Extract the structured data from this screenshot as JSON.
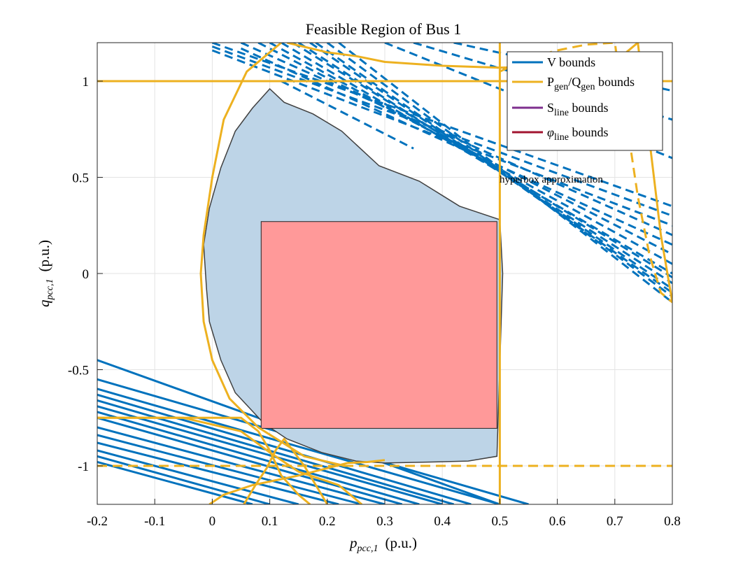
{
  "chart_data": {
    "type": "line",
    "title": "Feasible Region of Bus 1",
    "xlabel": {
      "main": "p",
      "sub": "pcc,1",
      "unit": "(p.u.)"
    },
    "ylabel": {
      "main": "q",
      "sub": "pcc,1",
      "unit": "(p.u.)"
    },
    "xlim": [
      -0.2,
      0.8
    ],
    "ylim": [
      -1.2,
      1.2
    ],
    "xticks": [
      "-0.2",
      "-0.1",
      "0",
      "0.1",
      "0.2",
      "0.3",
      "0.4",
      "0.5",
      "0.6",
      "0.7",
      "0.8"
    ],
    "yticks": [
      "-1",
      "-0.5",
      "0",
      "0.5",
      "1"
    ],
    "grid": true,
    "legend_position": "top-right",
    "legend": [
      {
        "label": "V bounds",
        "color": "#0072BD"
      },
      {
        "label_parts": [
          "P",
          "gen",
          "/Q",
          "gen",
          " bounds"
        ],
        "color": "#EDB120"
      },
      {
        "label_parts": [
          "S",
          "line",
          " bounds"
        ],
        "color": "#7E2F8E"
      },
      {
        "label_parts": [
          "φ",
          "line",
          " bounds"
        ],
        "color": "#A2142F"
      }
    ],
    "annotation": {
      "text": "hyperbox approximation",
      "x": 0.5,
      "y": 0.5
    },
    "colors": {
      "v_bounds": "#0072BD",
      "gen_bounds": "#EDB120",
      "feasible_fill": "#bdd4e7",
      "hyperbox_fill": "#ff9999",
      "boundary": "#404040",
      "grid": "#e3e3e3"
    },
    "feasible_region": {
      "x": [
        0.1,
        0.125,
        0.175,
        0.225,
        0.29,
        0.36,
        0.43,
        0.5,
        0.505,
        0.495,
        0.445,
        0.38,
        0.3,
        0.25,
        0.19,
        0.13,
        0.09,
        0.04,
        0.015,
        -0.005,
        -0.01,
        -0.015,
        -0.005,
        0.015,
        0.04,
        0.07
      ],
      "y": [
        0.96,
        0.89,
        0.83,
        0.74,
        0.56,
        0.48,
        0.35,
        0.28,
        0.0,
        -0.95,
        -0.975,
        -0.98,
        -0.985,
        -0.975,
        -0.93,
        -0.86,
        -0.78,
        -0.62,
        -0.45,
        -0.25,
        -0.08,
        0.15,
        0.34,
        0.55,
        0.74,
        0.86
      ]
    },
    "hyperbox": {
      "x": [
        0.085,
        0.495
      ],
      "y": [
        -0.805,
        0.27
      ]
    },
    "gen_bounds": {
      "vertical_line_x": 0.5,
      "horizontal_line_y": 1.0,
      "horizontal_dashed_y": -1.0,
      "arc": {
        "x": [
          0.12,
          0.06,
          0.02,
          0.0,
          -0.015,
          -0.02,
          -0.015,
          0.0,
          0.03,
          0.08,
          0.16,
          0.23
        ],
        "y": [
          1.2,
          1.05,
          0.8,
          0.5,
          0.2,
          0.0,
          -0.25,
          -0.45,
          -0.65,
          -0.8,
          -0.95,
          -1.0
        ]
      },
      "lower_curve": {
        "x": [
          -0.2,
          0.05,
          0.08,
          0.1,
          0.12,
          0.15,
          0.17
        ],
        "y": [
          -0.75,
          -0.75,
          -0.82,
          -0.92,
          -1.05,
          -1.15,
          -1.2
        ]
      },
      "lower_curve2": {
        "x": [
          -0.2,
          -0.05,
          0.05,
          0.1,
          0.15,
          0.22,
          0.26
        ],
        "y": [
          -0.75,
          -0.75,
          -0.82,
          -0.93,
          -1.03,
          -1.1,
          -1.2
        ]
      },
      "lower_curve3": {
        "x": [
          -0.005,
          0.02,
          0.07,
          0.15,
          0.235,
          0.27,
          0.3
        ],
        "y": [
          -1.2,
          -1.15,
          -1.1,
          -1.05,
          -0.985,
          -0.98,
          -0.97
        ]
      },
      "upper_curve": {
        "x": [
          0.055,
          0.075,
          0.095,
          0.11,
          0.125,
          0.14,
          0.16,
          0.18,
          0.2
        ],
        "y": [
          -1.2,
          -1.1,
          -1.01,
          -0.92,
          -0.86,
          -0.92,
          -1.0,
          -1.1,
          -1.2
        ]
      },
      "upper_arc": {
        "x": [
          0.13,
          0.2,
          0.25,
          0.3,
          0.4,
          0.5,
          0.6,
          0.7,
          0.72,
          0.74,
          0.76,
          0.78,
          0.8
        ],
        "y": [
          1.2,
          1.15,
          1.13,
          1.1,
          1.08,
          1.07,
          1.08,
          1.11,
          1.15,
          1.2,
          0.7,
          0.2,
          -0.15
        ]
      },
      "dashed_arc": {
        "x": [
          0.5,
          0.55,
          0.6,
          0.65,
          0.7,
          0.72,
          0.74,
          0.76,
          0.78,
          0.8
        ],
        "y": [
          1.05,
          1.12,
          1.16,
          1.19,
          1.2,
          0.8,
          0.4,
          0.1,
          -0.1,
          -0.15
        ]
      }
    },
    "v_bounds_lower_lines": [
      {
        "x": [
          -0.2,
          0.5
        ],
        "y": [
          -0.45,
          -1.2
        ]
      },
      {
        "x": [
          -0.2,
          0.55
        ],
        "y": [
          -0.55,
          -1.2
        ]
      },
      {
        "x": [
          -0.2,
          0.5
        ],
        "y": [
          -0.6,
          -1.2
        ]
      },
      {
        "x": [
          -0.2,
          0.45
        ],
        "y": [
          -0.63,
          -1.2
        ]
      },
      {
        "x": [
          -0.2,
          0.42
        ],
        "y": [
          -0.66,
          -1.2
        ]
      },
      {
        "x": [
          -0.2,
          0.4
        ],
        "y": [
          -0.69,
          -1.2
        ]
      },
      {
        "x": [
          -0.2,
          0.36
        ],
        "y": [
          -0.72,
          -1.2
        ]
      },
      {
        "x": [
          -0.2,
          0.33
        ],
        "y": [
          -0.75,
          -1.2
        ]
      },
      {
        "x": [
          -0.2,
          0.3
        ],
        "y": [
          -0.8,
          -1.2
        ]
      },
      {
        "x": [
          -0.2,
          0.26
        ],
        "y": [
          -0.84,
          -1.2
        ]
      },
      {
        "x": [
          -0.2,
          0.22
        ],
        "y": [
          -0.88,
          -1.2
        ]
      },
      {
        "x": [
          -0.2,
          0.15
        ],
        "y": [
          -0.92,
          -1.2
        ]
      },
      {
        "x": [
          -0.2,
          0.1
        ],
        "y": [
          -0.95,
          -1.2
        ]
      },
      {
        "x": [
          -0.2,
          0.07
        ],
        "y": [
          -0.98,
          -1.2
        ]
      }
    ],
    "v_bounds_upper_dashed": [
      {
        "x": [
          0.0,
          0.8
        ],
        "y": [
          1.2,
          0.35
        ]
      },
      {
        "x": [
          0.0,
          0.8
        ],
        "y": [
          1.18,
          0.3
        ]
      },
      {
        "x": [
          0.0,
          0.8
        ],
        "y": [
          1.16,
          0.25
        ]
      },
      {
        "x": [
          0.05,
          0.8
        ],
        "y": [
          1.2,
          0.2
        ]
      },
      {
        "x": [
          0.05,
          0.8
        ],
        "y": [
          1.17,
          0.15
        ]
      },
      {
        "x": [
          0.08,
          0.8
        ],
        "y": [
          1.2,
          0.1
        ]
      },
      {
        "x": [
          0.1,
          0.8
        ],
        "y": [
          1.2,
          0.05
        ]
      },
      {
        "x": [
          0.12,
          0.8
        ],
        "y": [
          1.2,
          0.0
        ]
      },
      {
        "x": [
          0.14,
          0.8
        ],
        "y": [
          1.2,
          -0.02
        ]
      },
      {
        "x": [
          0.15,
          0.8
        ],
        "y": [
          1.2,
          -0.05
        ]
      },
      {
        "x": [
          0.17,
          0.8
        ],
        "y": [
          1.2,
          -0.08
        ]
      },
      {
        "x": [
          0.18,
          0.8
        ],
        "y": [
          1.2,
          -0.1
        ]
      },
      {
        "x": [
          0.2,
          0.8
        ],
        "y": [
          1.2,
          -0.12
        ]
      },
      {
        "x": [
          0.22,
          0.8
        ],
        "y": [
          1.2,
          -0.15
        ]
      },
      {
        "x": [
          0.3,
          0.8
        ],
        "y": [
          1.2,
          0.6
        ]
      },
      {
        "x": [
          0.35,
          0.8
        ],
        "y": [
          1.2,
          0.8
        ]
      },
      {
        "x": [
          0.42,
          0.8
        ],
        "y": [
          1.2,
          0.95
        ]
      },
      {
        "x": [
          0.12,
          0.35
        ],
        "y": [
          1.0,
          0.65
        ]
      }
    ]
  }
}
